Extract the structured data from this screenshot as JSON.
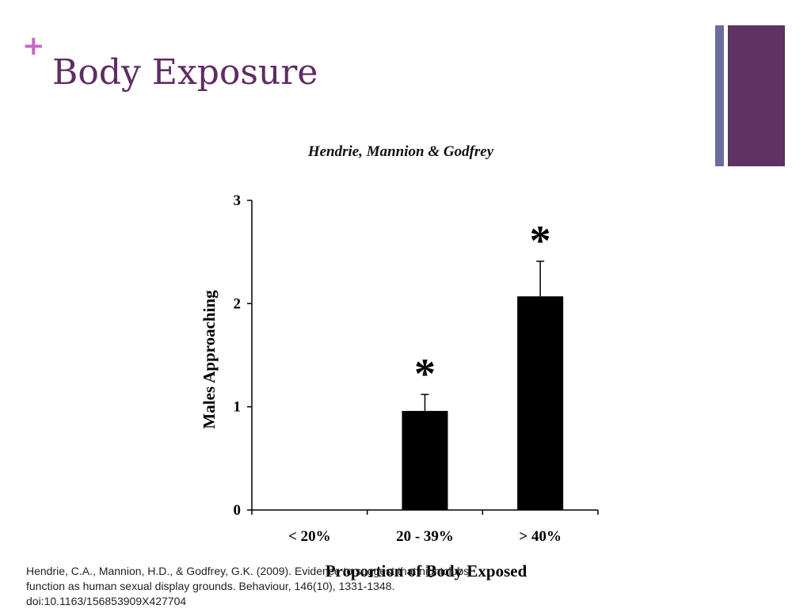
{
  "slide": {
    "title": "Body Exposure",
    "bullet_glyph": "+",
    "accent_color": "#5e2d63",
    "plus_color": "#c468c4"
  },
  "chart_data": {
    "type": "bar",
    "title": "Hendrie, Mannion & Godfrey",
    "xlabel": "Proportion of Body Exposed",
    "ylabel": "Males Approaching",
    "categories": [
      "< 20%",
      "20 - 39%",
      "> 40%"
    ],
    "values": [
      0,
      0.96,
      2.07
    ],
    "error_upper": [
      0,
      0.16,
      0.34
    ],
    "significance_markers": [
      "",
      "*",
      "*"
    ],
    "ylim": [
      0,
      3
    ],
    "yticks": [
      0,
      1,
      2,
      3
    ],
    "bar_color": "#000000",
    "grid": false
  },
  "citation": {
    "lines": [
      "Hendrie, C.A., Mannion, H.D., & Godfrey, G.K. (2009). Evidence to suggest that nightclubs",
      "function as human sexual display grounds. Behaviour, 146(10), 1331-1348.",
      "doi:10.1163/156853909X427704"
    ]
  }
}
